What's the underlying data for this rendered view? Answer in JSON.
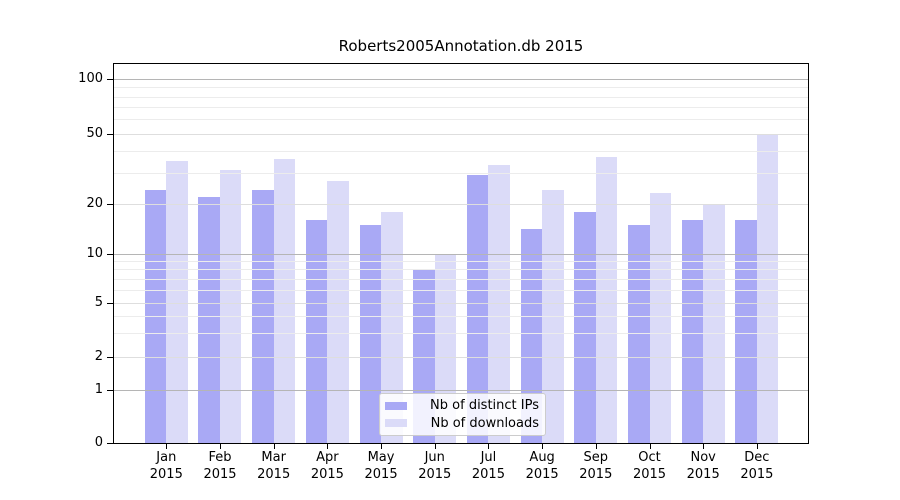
{
  "title": "Roberts2005Annotation.db 2015",
  "legend": {
    "position": "lower center",
    "items": [
      {
        "label": "Nb of distinct IPs",
        "color": "#a9a9f5"
      },
      {
        "label": "Nb of downloads",
        "color": "#dbdbf8"
      }
    ]
  },
  "colors": {
    "bar_distinct_ips": "#a9a9f5",
    "bar_downloads": "#dbdbf8",
    "grid_decade": "#b5b5b5",
    "grid_labeled": "#dedede",
    "grid_minor": "#ececec",
    "axis": "#000000",
    "background": "#ffffff"
  },
  "chart_data": {
    "type": "bar",
    "title": "Roberts2005Annotation.db 2015",
    "categories": [
      "Jan 2015",
      "Feb 2015",
      "Mar 2015",
      "Apr 2015",
      "May 2015",
      "Jun 2015",
      "Jul 2015",
      "Aug 2015",
      "Sep 2015",
      "Oct 2015",
      "Nov 2015",
      "Dec 2015"
    ],
    "x_tick_months": [
      "Jan",
      "Feb",
      "Mar",
      "Apr",
      "May",
      "Jun",
      "Jul",
      "Aug",
      "Sep",
      "Oct",
      "Nov",
      "Dec"
    ],
    "x_tick_year": "2015",
    "series": [
      {
        "name": "Nb of distinct IPs",
        "color": "#a9a9f5",
        "values": [
          24,
          22,
          24,
          16,
          15,
          8,
          29,
          14,
          18,
          15,
          16,
          16
        ]
      },
      {
        "name": "Nb of downloads",
        "color": "#dbdbf8",
        "values": [
          35,
          31,
          36,
          27,
          18,
          10,
          33,
          24,
          37,
          23,
          20,
          50
        ]
      }
    ],
    "xlabel": "",
    "ylabel": "",
    "yscale": "symlog-like",
    "ylim": [
      0,
      120
    ],
    "y_ticks": [
      0,
      1,
      2,
      5,
      10,
      20,
      50,
      100
    ],
    "y_decade_gridlines": [
      1,
      10,
      100
    ],
    "y_labeled_gridlines": [
      2,
      5,
      20,
      50
    ],
    "y_minor_gridlines": [
      3,
      4,
      6,
      7,
      8,
      9,
      30,
      40,
      60,
      70,
      80,
      90
    ],
    "grid": true,
    "grid_above_bars": true,
    "legend_position": "lower center"
  }
}
